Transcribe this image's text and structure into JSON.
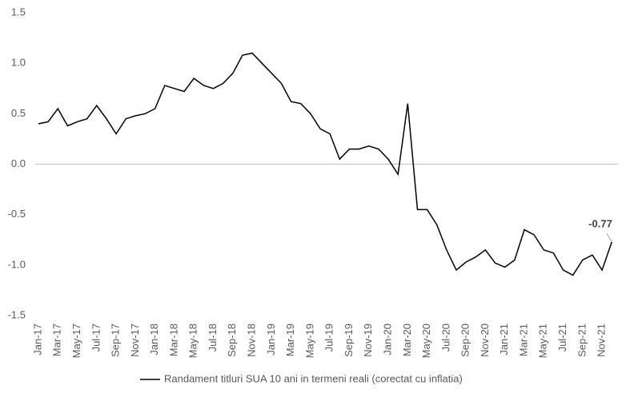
{
  "chart_data": {
    "type": "line",
    "categories": [
      "Jan-17",
      null,
      "Mar-17",
      null,
      "May-17",
      null,
      "Jul-17",
      null,
      "Sep-17",
      null,
      "Nov-17",
      null,
      "Jan-18",
      null,
      "Mar-18",
      null,
      "May-18",
      null,
      "Jul-18",
      null,
      "Sep-18",
      null,
      "Nov-18",
      null,
      "Jan-19",
      null,
      "Mar-19",
      null,
      "May-19",
      null,
      "Jul-19",
      null,
      "Sep-19",
      null,
      "Nov-19",
      null,
      "Jan-20",
      null,
      "Mar-20",
      null,
      "May-20",
      null,
      "Jul-20",
      null,
      "Sep-20",
      null,
      "Nov-20",
      null,
      "Jan-21",
      null,
      "Mar-21",
      null,
      "May-21",
      null,
      "Jul-21",
      null,
      "Sep-21",
      null,
      "Nov-21",
      null
    ],
    "series": [
      {
        "name": "Randament titluri SUA 10 ani in termeni reali (corectat cu inflatia)",
        "color": "#000000",
        "values": [
          0.4,
          0.42,
          0.55,
          0.38,
          0.42,
          0.45,
          0.58,
          0.45,
          0.3,
          0.45,
          0.48,
          0.5,
          0.55,
          0.78,
          0.75,
          0.72,
          0.85,
          0.78,
          0.75,
          0.8,
          0.9,
          1.08,
          1.1,
          1.0,
          0.9,
          0.8,
          0.62,
          0.6,
          0.5,
          0.35,
          0.3,
          0.05,
          0.15,
          0.15,
          0.18,
          0.15,
          0.05,
          -0.1,
          0.6,
          -0.45,
          -0.45,
          -0.6,
          -0.85,
          -1.05,
          -0.97,
          -0.92,
          -0.85,
          -0.98,
          -1.02,
          -0.95,
          -0.65,
          -0.7,
          -0.85,
          -0.88,
          -1.05,
          -1.1,
          -0.95,
          -0.9,
          -1.05,
          -0.77
        ]
      }
    ],
    "ylim": [
      -1.5,
      1.5
    ],
    "yticks": [
      -1.5,
      {
        "value": -1,
        "label": "-1.0"
      },
      -0.5,
      {
        "value": 0,
        "label": "0.0"
      },
      0.5,
      {
        "value": 1,
        "label": "1.0"
      },
      1.5
    ]
  }
}
